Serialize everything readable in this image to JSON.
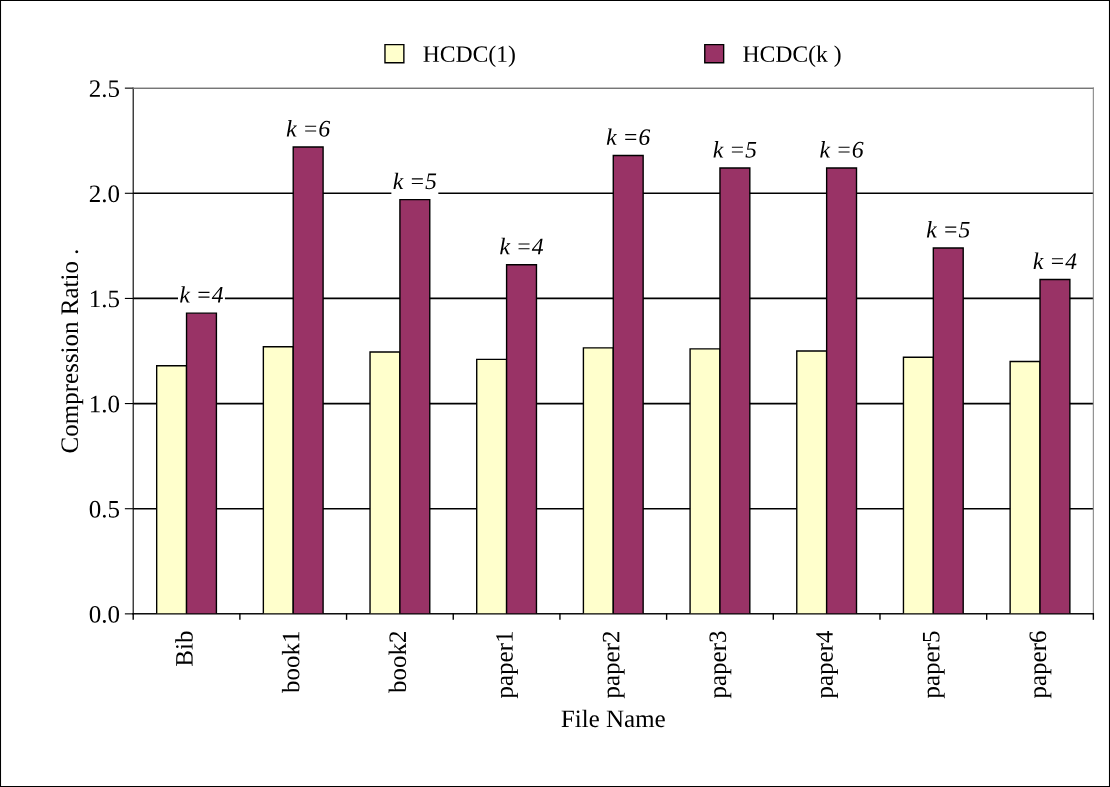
{
  "chart_data": {
    "type": "bar",
    "xlabel": "File Name",
    "ylabel": "Compression Ratio .",
    "categories": [
      "Bib",
      "book1",
      "book2",
      "paper1",
      "paper2",
      "paper3",
      "paper4",
      "paper5",
      "paper6"
    ],
    "series": [
      {
        "name": "HCDC(1)",
        "color": "#ffffcc",
        "values": [
          1.18,
          1.27,
          1.245,
          1.21,
          1.265,
          1.26,
          1.25,
          1.22,
          1.2
        ]
      },
      {
        "name": "HCDC(k )",
        "color": "#993366",
        "values": [
          1.43,
          2.22,
          1.97,
          1.66,
          2.18,
          2.12,
          2.12,
          1.74,
          1.59
        ]
      }
    ],
    "annotations": [
      {
        "text": "k =4",
        "x": "Bib",
        "y": 1.43
      },
      {
        "text": "k =6",
        "x": "book1",
        "y": 2.22
      },
      {
        "text": "k =5",
        "x": "book2",
        "y": 1.97
      },
      {
        "text": "k =4",
        "x": "paper1",
        "y": 1.66
      },
      {
        "text": "k =6",
        "x": "paper2",
        "y": 2.18
      },
      {
        "text": "k =5",
        "x": "paper3",
        "y": 2.12
      },
      {
        "text": "k =6",
        "x": "paper4",
        "y": 2.12
      },
      {
        "text": "k =5",
        "x": "paper5",
        "y": 1.74
      },
      {
        "text": "k =4",
        "x": "paper6",
        "y": 1.59
      }
    ],
    "ylim": [
      0,
      2.5
    ],
    "yticks": [
      {
        "value": 0,
        "label": "0.0"
      },
      {
        "value": 0.5,
        "label": "0.5"
      },
      {
        "value": 1,
        "label": "1.0"
      },
      {
        "value": 1.5,
        "label": "1.5"
      },
      {
        "value": 2,
        "label": "2.0"
      },
      {
        "value": 2.5,
        "label": "2.5"
      }
    ],
    "grid": "y",
    "legend": "top"
  }
}
